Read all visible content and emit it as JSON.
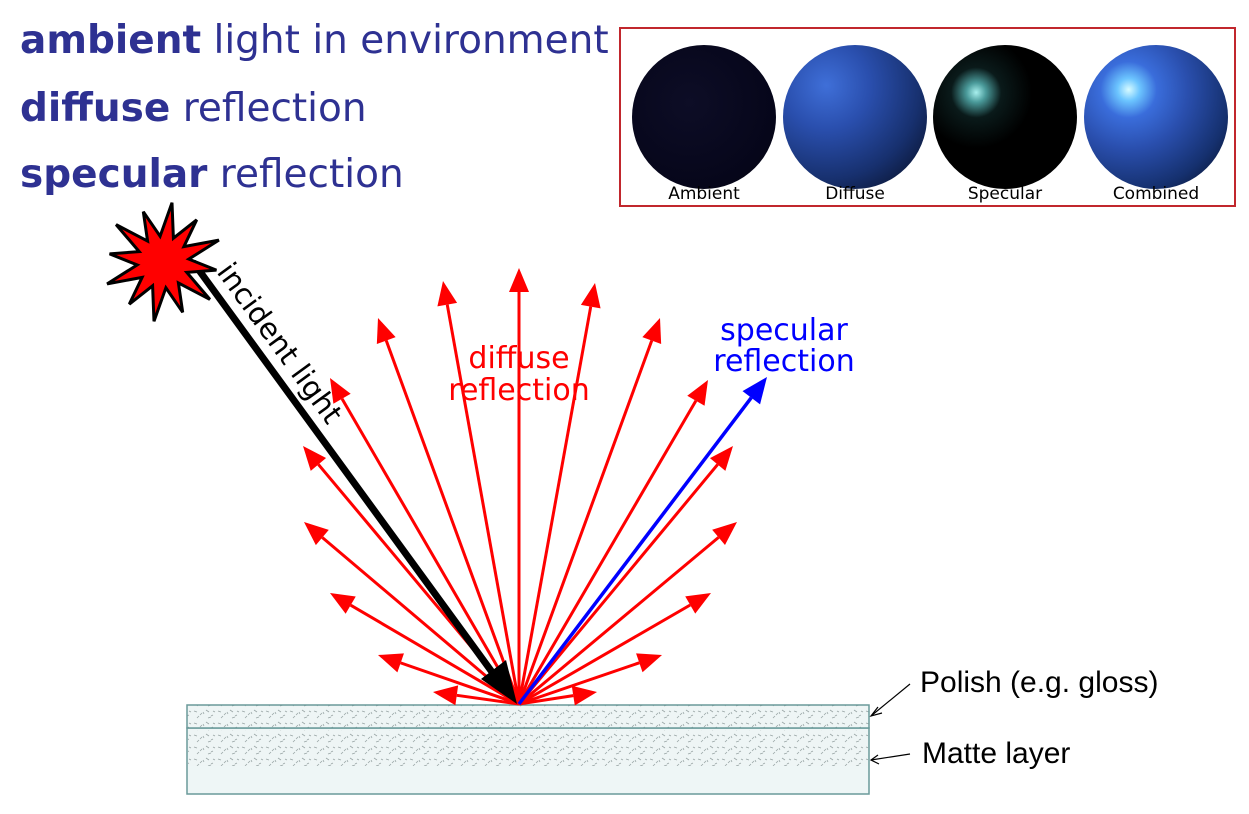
{
  "headings": [
    {
      "bold": "ambient",
      "rest": " light in environment"
    },
    {
      "bold": "diffuse",
      "rest": " reflection"
    },
    {
      "bold": "specular",
      "rest": " reflection"
    }
  ],
  "spheres": [
    {
      "label": "Ambient"
    },
    {
      "label": "Diffuse"
    },
    {
      "label": "Specular"
    },
    {
      "label": "Combined"
    }
  ],
  "diagram": {
    "incident_label": "incident light",
    "diffuse_label_1": "diffuse",
    "diffuse_label_2": "reflection",
    "specular_label_1": "specular",
    "specular_label_2": "reflection",
    "polish_label": "Polish (e.g. gloss)",
    "matte_label": "Matte layer"
  },
  "colors": {
    "heading": "#2e3192",
    "diffuse_ray": "#ff0000",
    "specular_ray": "#0000ff",
    "incident_ray": "#000000",
    "panel_border": "#c1272d"
  }
}
